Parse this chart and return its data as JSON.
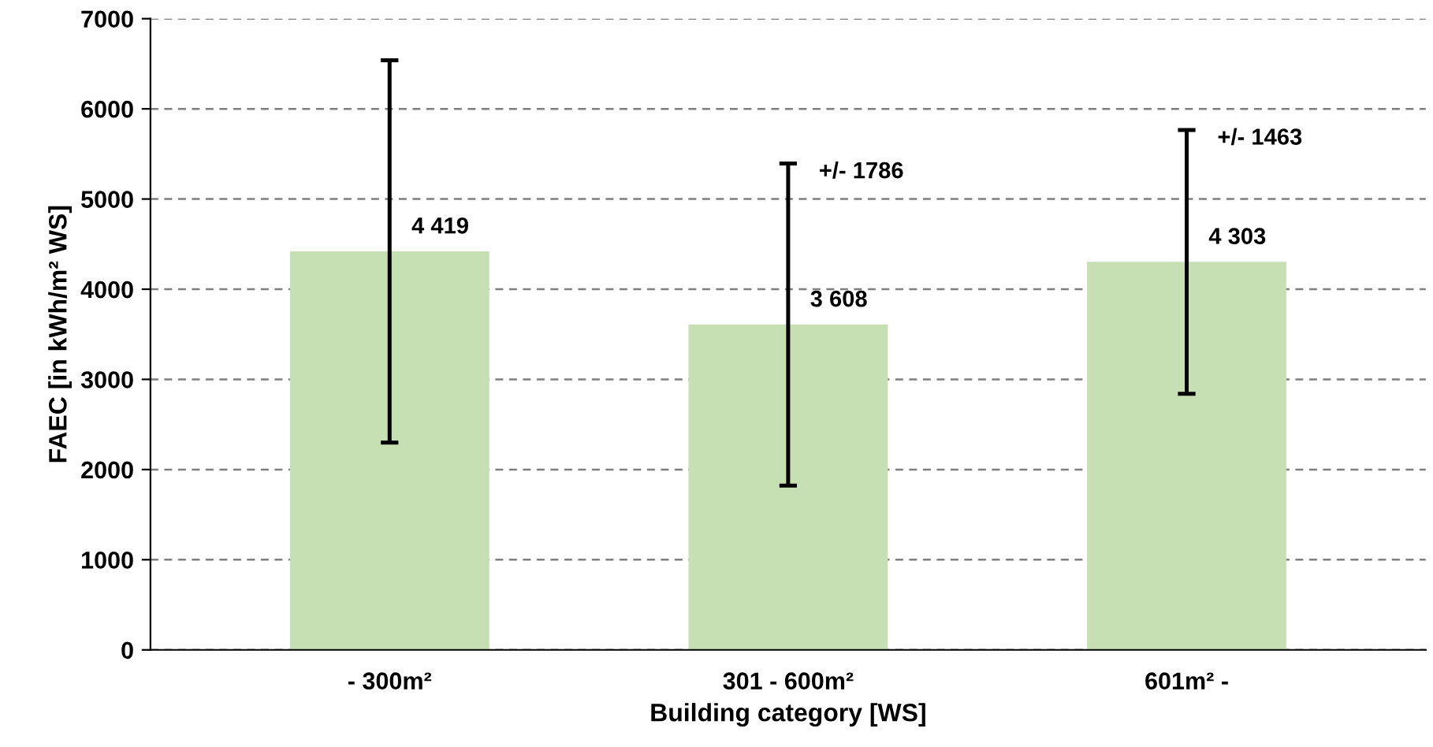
{
  "chart_data": {
    "type": "bar",
    "xlabel": "Building category [WS]",
    "ylabel": "FAEC [in kWh/m² WS]",
    "categories": [
      "- 300m²",
      "301 - 600m²",
      "601m² -"
    ],
    "values": [
      4419,
      3608,
      4303
    ],
    "value_labels": [
      "4 419",
      "3 608",
      "4 303"
    ],
    "errors": [
      2120,
      1786,
      1463
    ],
    "color": "#c6e0b4",
    "annotations": [
      {
        "text": "+/- 1786",
        "x": "301 - 600m²",
        "y": 5394
      },
      {
        "text": "+/- 1463",
        "x": "601m² -",
        "y": 5766
      }
    ],
    "ylim": [
      0,
      7000
    ],
    "yticks": [
      0,
      1000,
      2000,
      3000,
      4000,
      5000,
      6000,
      7000
    ],
    "grid": "y"
  }
}
